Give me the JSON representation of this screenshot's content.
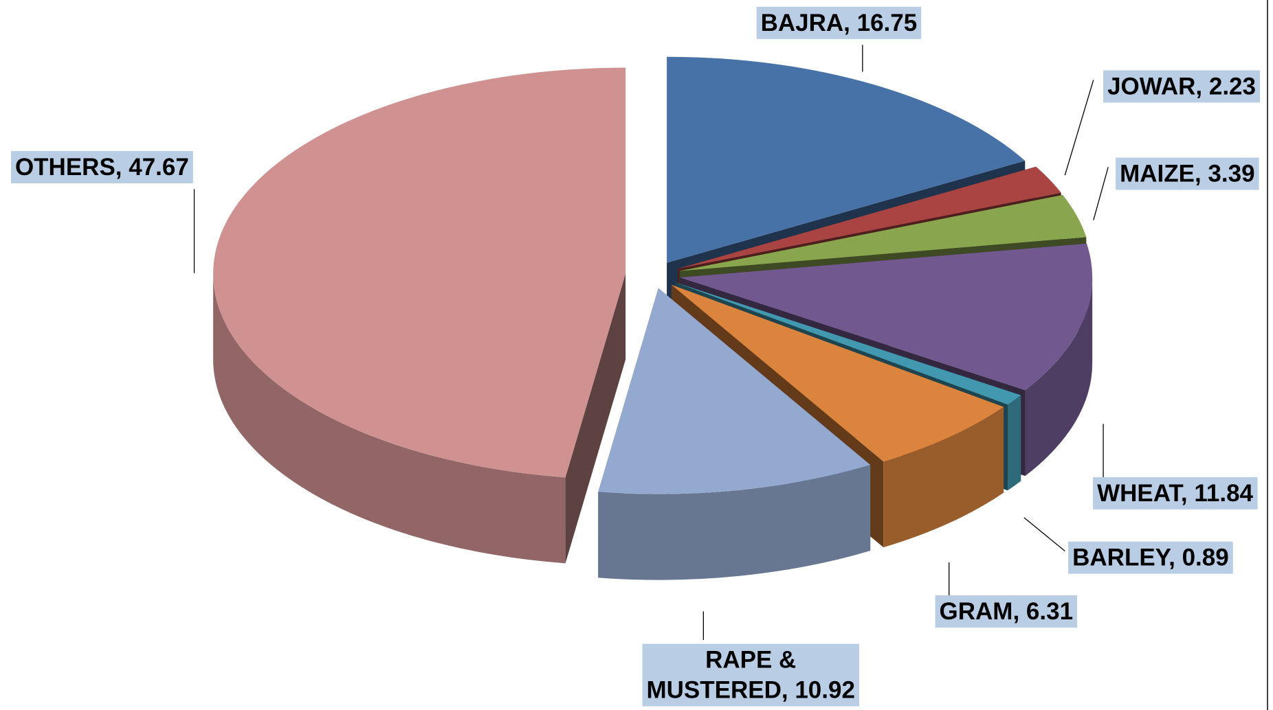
{
  "chart_data": {
    "type": "pie3d",
    "values": [
      16.75,
      2.23,
      3.39,
      11.84,
      0.89,
      6.31,
      10.92,
      47.67
    ],
    "value_labels": [
      "BAJRA, 16.75",
      "JOWAR, 2.23",
      "MAIZE, 3.39",
      "WHEAT, 11.84",
      "BARLEY, 0.89",
      "GRAM, 6.31",
      "RAPE & MUSTERED, 10.92",
      "OTHERS, 47.67"
    ],
    "colors": [
      "#4672a8",
      "#a94442",
      "#89a54e",
      "#71588f",
      "#4198af",
      "#db843d",
      "#93a9cf",
      "#d09291"
    ]
  }
}
